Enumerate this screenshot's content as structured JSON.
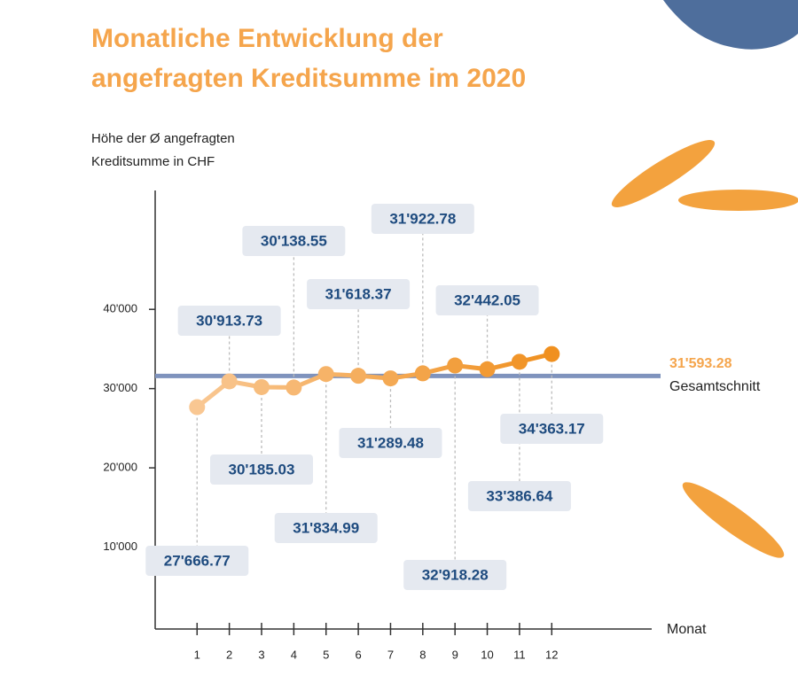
{
  "chart_data": {
    "type": "line",
    "title": [
      "Monatliche Entwicklung der",
      "angefragten Kreditsumme im 2020"
    ],
    "y_axis_label": [
      "Höhe der Ø angefragten",
      "Kreditsumme in CHF"
    ],
    "x_axis_label": "Monat",
    "x": [
      1,
      2,
      3,
      4,
      5,
      6,
      7,
      8,
      9,
      10,
      11,
      12
    ],
    "series": [
      {
        "values": [
          27666.77,
          30913.73,
          30185.03,
          30138.55,
          31834.99,
          31618.37,
          31289.48,
          31922.78,
          32918.28,
          32442.05,
          33386.64,
          34363.17
        ],
        "value_labels": [
          "27'666.77",
          "30'913.73",
          "30'185.03",
          "30'138.55",
          "31'834.99",
          "31'618.37",
          "31'289.48",
          "31'922.78",
          "32'918.28",
          "32'442.05",
          "33'386.64",
          "34'363.17"
        ],
        "gradient_colors": [
          "#f9c792",
          "#f0901f"
        ]
      }
    ],
    "reference_line": {
      "value": 31593.28,
      "value_label": "31'593.28",
      "label": "Gesamtschnitt",
      "color": "#7f93bd"
    },
    "xlim": [
      -0.3,
      15.1
    ],
    "xticks": [
      1,
      2,
      3,
      4,
      5,
      6,
      7,
      8,
      9,
      10,
      11,
      12
    ],
    "ylim": [
      0,
      55000
    ],
    "yticks": [
      {
        "value": 10000,
        "label": "10'000"
      },
      {
        "value": 20000,
        "label": "20'000"
      },
      {
        "value": 30000,
        "label": "30'000"
      },
      {
        "value": 40000,
        "label": "40'000"
      }
    ]
  }
}
